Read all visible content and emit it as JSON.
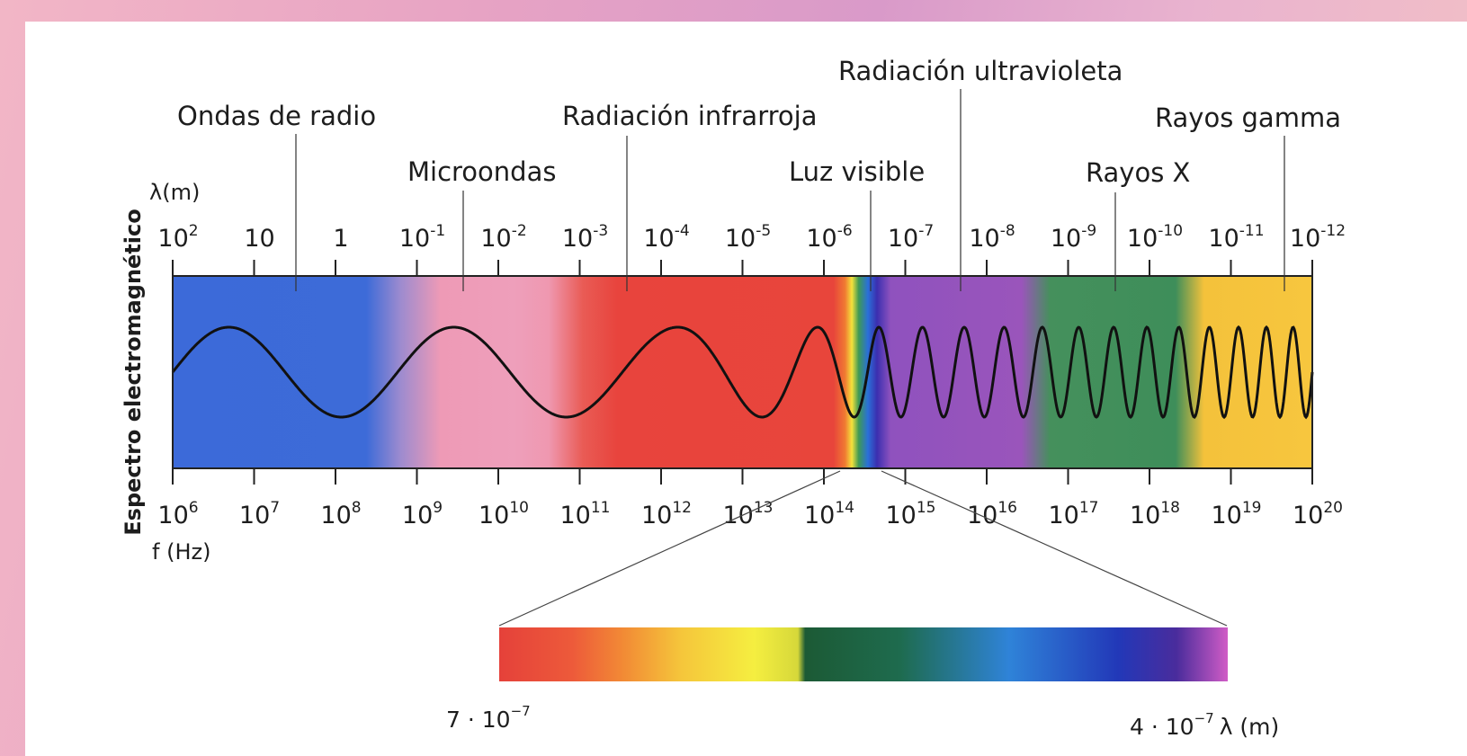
{
  "categories": [
    {
      "key": "radio",
      "label": "Ondas de radio"
    },
    {
      "key": "micro",
      "label": "Microondas"
    },
    {
      "key": "ir",
      "label": "Radiación infrarroja"
    },
    {
      "key": "visible",
      "label": "Luz visible"
    },
    {
      "key": "uv",
      "label": "Radiación ultravioleta"
    },
    {
      "key": "xray",
      "label": "Rayos X"
    },
    {
      "key": "gamma",
      "label": "Rayos gamma"
    }
  ],
  "axis_title": "Espectro electromagnético",
  "wavelength_unit": "λ(m)",
  "frequency_unit": "f (Hz)",
  "wavelength_ticks": [
    {
      "base": "10",
      "exp": "2"
    },
    {
      "base": "10",
      "exp": ""
    },
    {
      "base": "1",
      "exp": ""
    },
    {
      "base": "10",
      "exp": "-1"
    },
    {
      "base": "10",
      "exp": "-2"
    },
    {
      "base": "10",
      "exp": "-3"
    },
    {
      "base": "10",
      "exp": "-4"
    },
    {
      "base": "10",
      "exp": "-5"
    },
    {
      "base": "10",
      "exp": "-6"
    },
    {
      "base": "10",
      "exp": "-7"
    },
    {
      "base": "10",
      "exp": "-8"
    },
    {
      "base": "10",
      "exp": "-9"
    },
    {
      "base": "10",
      "exp": "-10"
    },
    {
      "base": "10",
      "exp": "-11"
    },
    {
      "base": "10",
      "exp": "-12"
    }
  ],
  "frequency_ticks": [
    {
      "base": "10",
      "exp": "6"
    },
    {
      "base": "10",
      "exp": "7"
    },
    {
      "base": "10",
      "exp": "8"
    },
    {
      "base": "10",
      "exp": "9"
    },
    {
      "base": "10",
      "exp": "10"
    },
    {
      "base": "10",
      "exp": "11"
    },
    {
      "base": "10",
      "exp": "12"
    },
    {
      "base": "10",
      "exp": "13"
    },
    {
      "base": "10",
      "exp": "14"
    },
    {
      "base": "10",
      "exp": "15"
    },
    {
      "base": "10",
      "exp": "16"
    },
    {
      "base": "10",
      "exp": "17"
    },
    {
      "base": "10",
      "exp": "18"
    },
    {
      "base": "10",
      "exp": "19"
    },
    {
      "base": "10",
      "exp": "20"
    }
  ],
  "visible_range": {
    "left_label": {
      "text": "7 · 10",
      "exp": "−7"
    },
    "right_label": {
      "text": "4 · 10",
      "exp": "−7",
      "unit": "λ (m)"
    }
  },
  "colors": {
    "radio": "#3c6ad9",
    "microwave": "#ec9cb8",
    "infrared": "#e8443d",
    "ultraviolet": "#8f52be",
    "xray": "#3f8f5a",
    "gamma": "#f5c43a",
    "wave": "#111111"
  }
}
